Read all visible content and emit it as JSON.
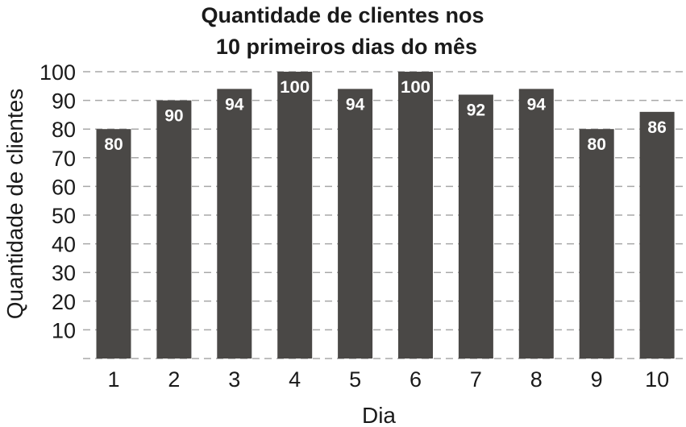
{
  "chart_data": {
    "type": "bar",
    "title": [
      "Quantidade de clientes nos",
      "10 primeiros dias do mês"
    ],
    "xlabel": "Dia",
    "ylabel": "Quantidade de clientes",
    "categories": [
      "1",
      "2",
      "3",
      "4",
      "5",
      "6",
      "7",
      "8",
      "9",
      "10"
    ],
    "values": [
      80,
      90,
      94,
      100,
      94,
      100,
      92,
      94,
      80,
      86
    ],
    "ylim": [
      0,
      100
    ],
    "yticks": [
      10,
      20,
      30,
      40,
      50,
      60,
      70,
      80,
      90,
      100
    ],
    "grid": true,
    "legend": "none",
    "bar_color": "#4a4846",
    "label_color": "#ffffff",
    "grid_color": "#a8a8a8"
  }
}
